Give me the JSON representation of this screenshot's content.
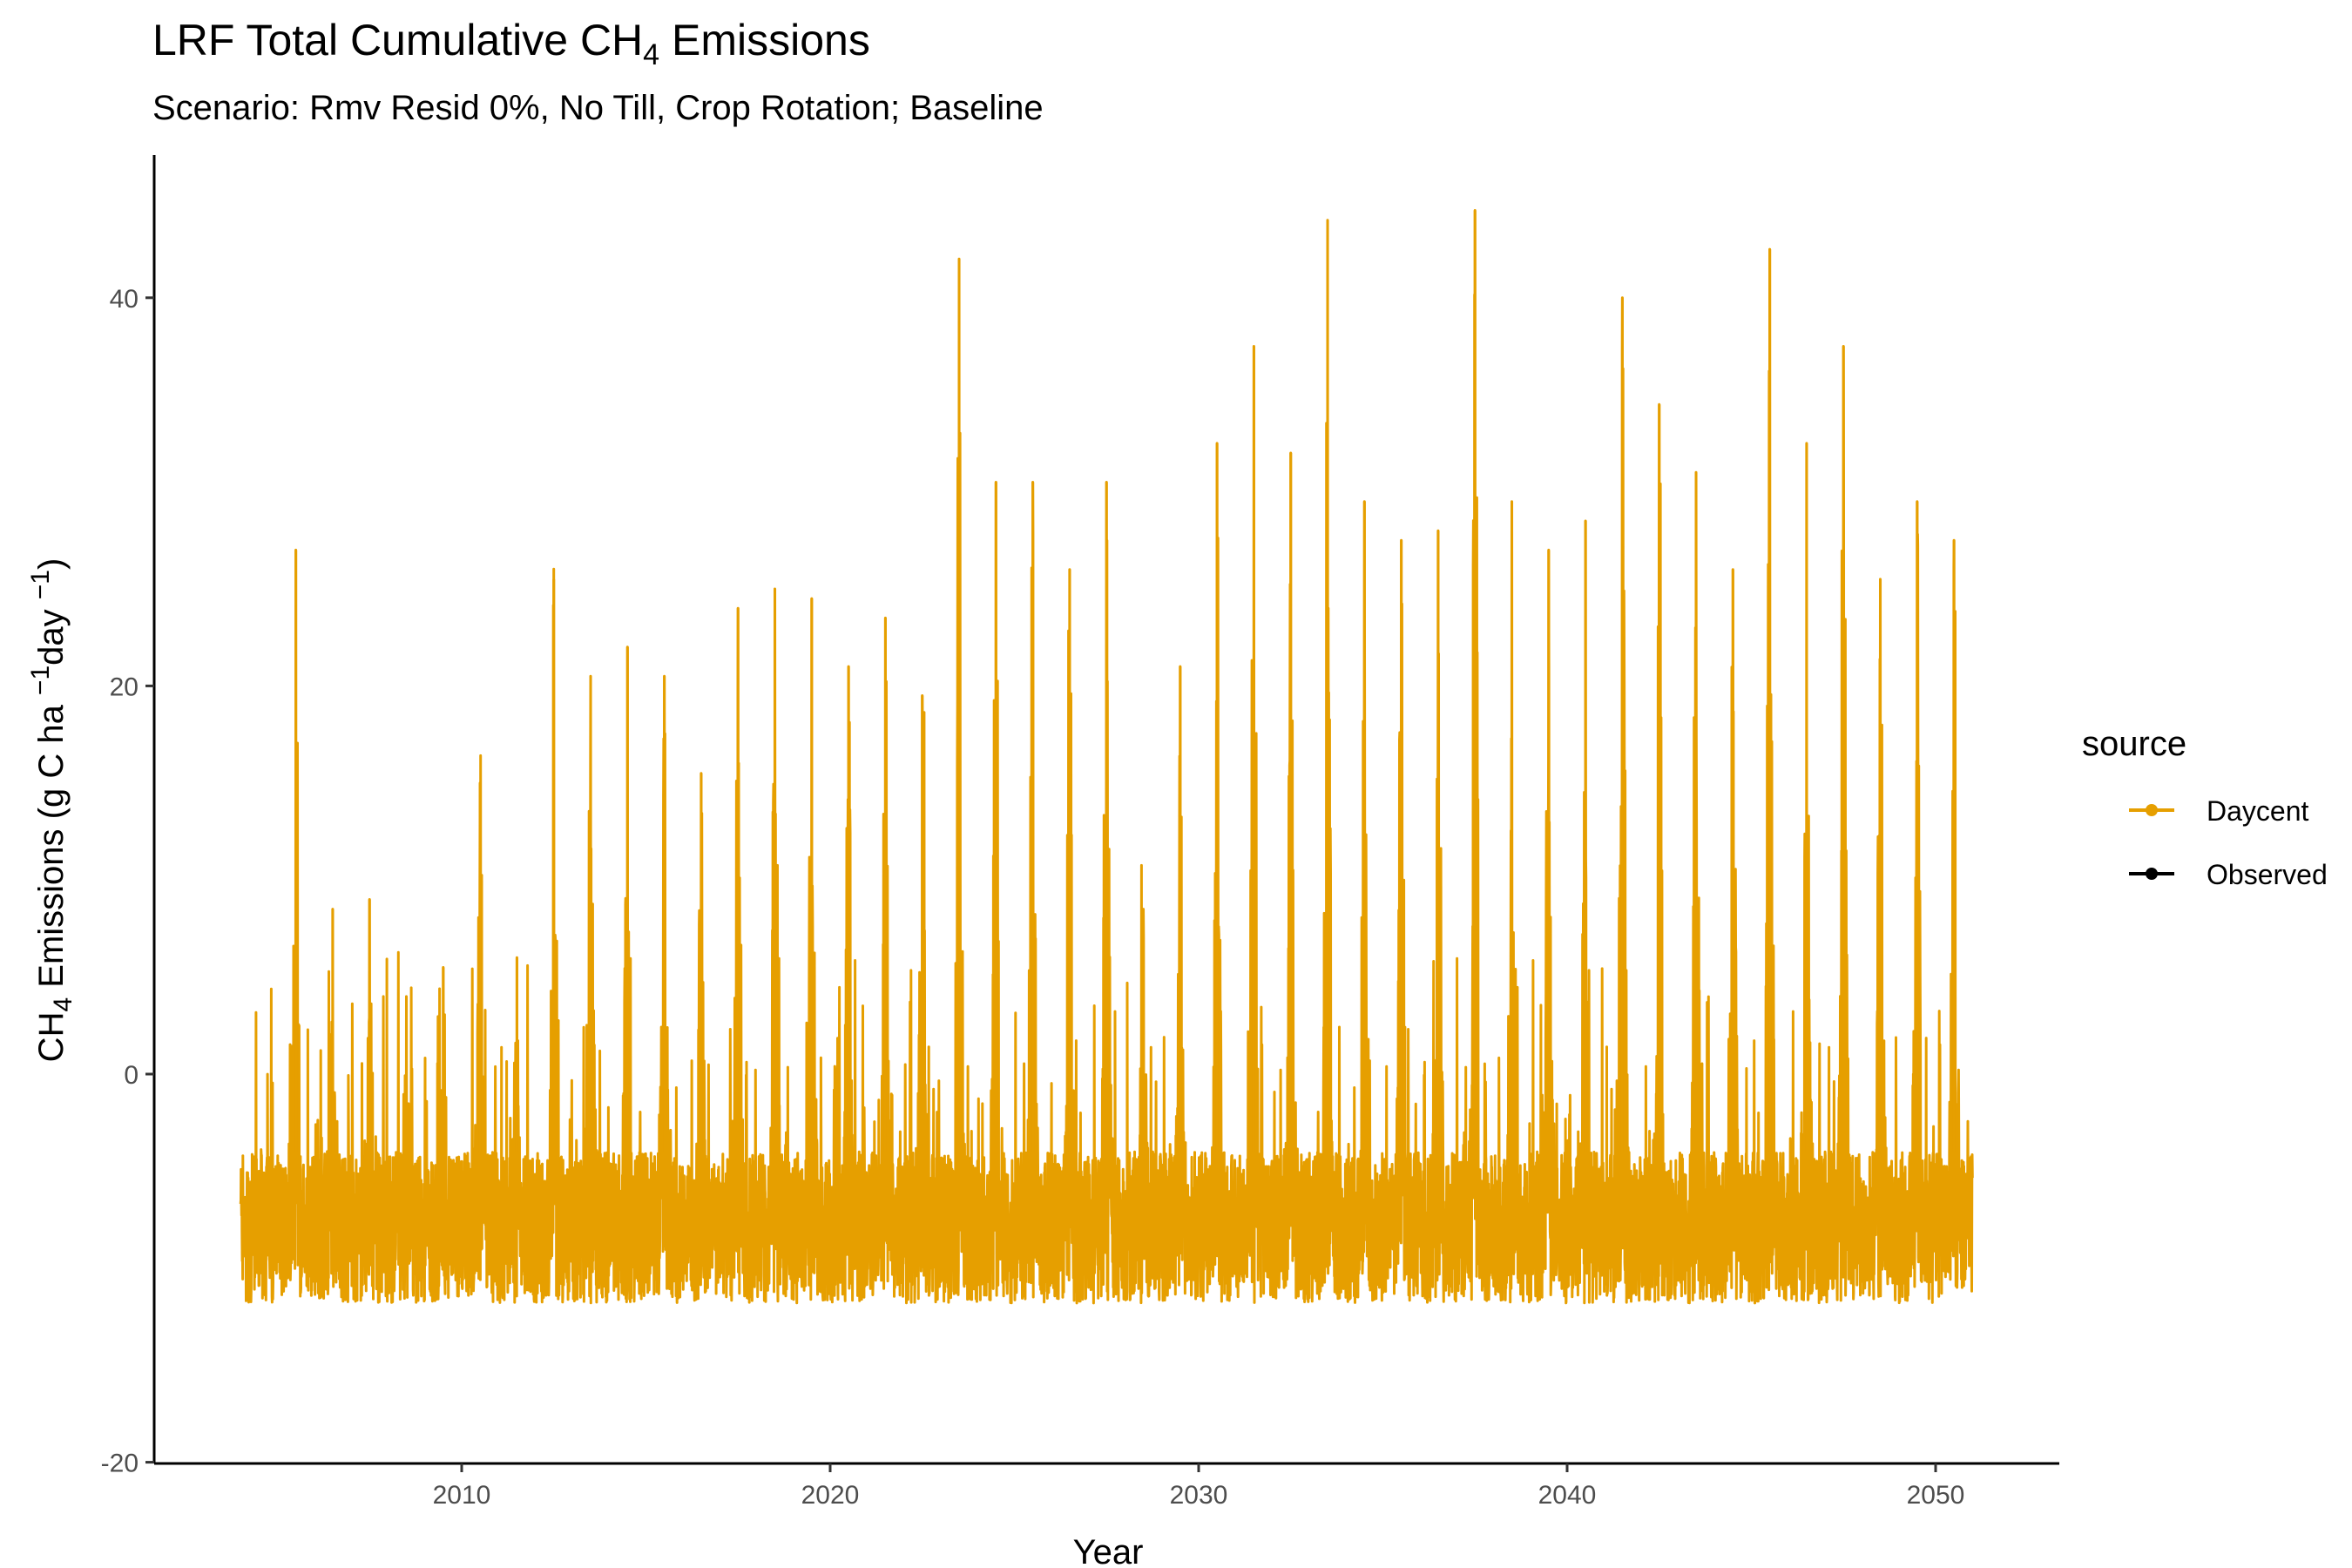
{
  "chart_title": {
    "main": "LRF Total Cumulative CH",
    "sub": "4",
    "tail": " Emissions"
  },
  "chart_subtitle": "Scenario: Rmv Resid 0%, No Till, Crop Rotation; Baseline",
  "chart_data": {
    "type": "line",
    "title": "LRF Total Cumulative CH4 Emissions",
    "subtitle": "Scenario: Rmv Resid 0%, No Till, Crop Rotation; Baseline",
    "xlabel": "Year",
    "ylabel": "CH4 Emissions (g C ha -1 day -1)",
    "ylabel_parts": {
      "a": "CH",
      "a_sub": "4",
      "b": " Emissions (g C ha ",
      "c_sup": "−1",
      "d": "day ",
      "e_sup": "−1",
      "f": ")"
    },
    "xlim": [
      2004,
      2051
    ],
    "ylim": [
      -20,
      45
    ],
    "x_ticks": [
      2010,
      2020,
      2030,
      2040,
      2050
    ],
    "y_ticks": [
      -20,
      0,
      20,
      40
    ],
    "grid": false,
    "legend": {
      "title": "source",
      "placement": "right",
      "entries": [
        "Daycent",
        "Observed"
      ]
    },
    "colors": {
      "Daycent": "#E69F00",
      "Observed": "#000000"
    },
    "series": [
      {
        "name": "Daycent",
        "seasonal_peaks": [
          {
            "x": 2005.5,
            "y": 27
          },
          {
            "x": 2006.5,
            "y": 8.5
          },
          {
            "x": 2007.5,
            "y": 9
          },
          {
            "x": 2008.5,
            "y": 4
          },
          {
            "x": 2009.5,
            "y": 5.5
          },
          {
            "x": 2010.5,
            "y": 15
          },
          {
            "x": 2011.5,
            "y": 6
          },
          {
            "x": 2012.5,
            "y": 25.5
          },
          {
            "x": 2013.5,
            "y": 20.5
          },
          {
            "x": 2014.5,
            "y": 22
          },
          {
            "x": 2015.5,
            "y": 20.5
          },
          {
            "x": 2016.5,
            "y": 15.5
          },
          {
            "x": 2017.5,
            "y": 24
          },
          {
            "x": 2018.5,
            "y": 25
          },
          {
            "x": 2019.5,
            "y": 24.5
          },
          {
            "x": 2020.5,
            "y": 21
          },
          {
            "x": 2021.5,
            "y": 23.5
          },
          {
            "x": 2022.5,
            "y": 19.5
          },
          {
            "x": 2023.5,
            "y": 42
          },
          {
            "x": 2024.5,
            "y": 30.5
          },
          {
            "x": 2025.5,
            "y": 30.5
          },
          {
            "x": 2026.5,
            "y": 26
          },
          {
            "x": 2027.5,
            "y": 30.5
          },
          {
            "x": 2028.5,
            "y": 8.5
          },
          {
            "x": 2029.5,
            "y": 21
          },
          {
            "x": 2030.5,
            "y": 32.5
          },
          {
            "x": 2031.5,
            "y": 37.5
          },
          {
            "x": 2032.5,
            "y": 32
          },
          {
            "x": 2033.5,
            "y": 44
          },
          {
            "x": 2034.5,
            "y": 29.5
          },
          {
            "x": 2035.5,
            "y": 27.5
          },
          {
            "x": 2036.5,
            "y": 28
          },
          {
            "x": 2037.5,
            "y": 44.5
          },
          {
            "x": 2038.5,
            "y": 29.5
          },
          {
            "x": 2039.5,
            "y": 27
          },
          {
            "x": 2040.5,
            "y": 28.5
          },
          {
            "x": 2041.5,
            "y": 40
          },
          {
            "x": 2042.5,
            "y": 34.5
          },
          {
            "x": 2043.5,
            "y": 31
          },
          {
            "x": 2044.5,
            "y": 26
          },
          {
            "x": 2045.5,
            "y": 42.5
          },
          {
            "x": 2046.5,
            "y": 32.5
          },
          {
            "x": 2047.5,
            "y": 37.5
          },
          {
            "x": 2048.5,
            "y": 25.5
          },
          {
            "x": 2049.5,
            "y": 29.5
          },
          {
            "x": 2050.5,
            "y": 27.5
          }
        ],
        "baseline_range": [
          -16,
          -4
        ],
        "x_range": [
          2004,
          2051
        ]
      },
      {
        "name": "Observed",
        "values": []
      }
    ]
  }
}
